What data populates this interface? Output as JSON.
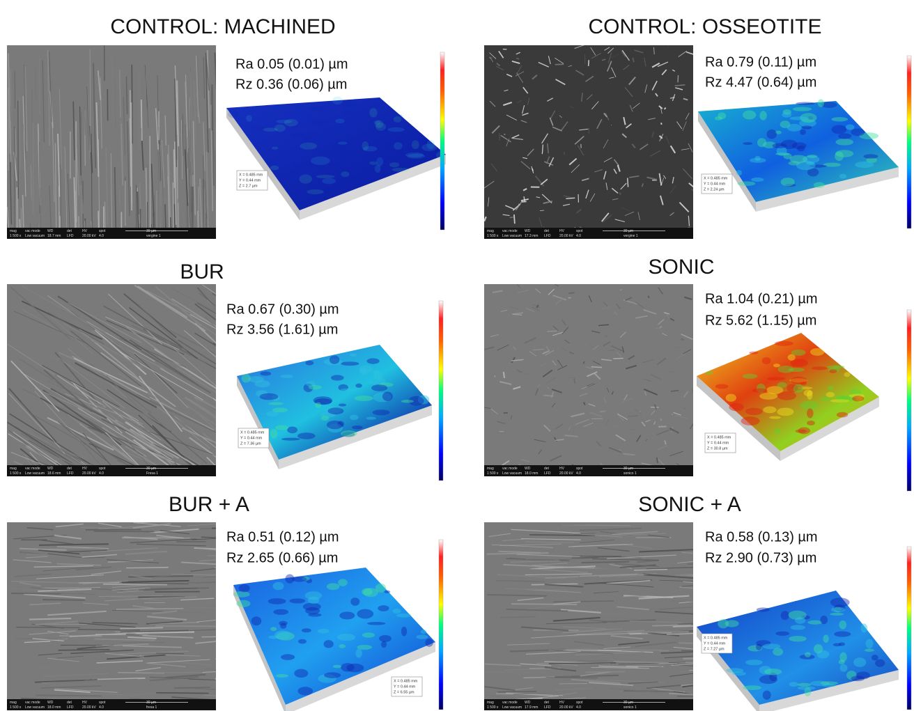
{
  "sem_bar_header": [
    "mag",
    "vac mode",
    "WD",
    "det",
    "HV",
    "spot",
    "30 µm"
  ],
  "panels": [
    {
      "title": "CONTROL: MACHINED",
      "ra": "Ra 0.05 (0.01) µm",
      "rz": "Rz 0.36 (0.06) µm",
      "inset": [
        "X = 0.485 mm",
        "Y = 0.44 mm",
        "Z = 2.7 µm"
      ],
      "sem_values": [
        "1 500 x",
        "Low vacuum",
        "18.7 mm",
        "LFD",
        "20.00 kV",
        "4.0",
        "vergine 1"
      ]
    },
    {
      "title": "CONTROL: OSSEOTITE",
      "ra": "Ra 0.79 (0.11) µm",
      "rz": "Rz 4.47 (0.64) µm",
      "inset": [
        "X = 0.485 mm",
        "Y = 0.44 mm",
        "Z = 2.24 µm"
      ],
      "sem_values": [
        "1 500 x",
        "Low vacuum",
        "17.3 mm",
        "LFD",
        "20.00 kV",
        "4.0",
        "vergine 1"
      ]
    },
    {
      "title": "BUR",
      "ra": "Ra 0.67 (0.30) µm",
      "rz": "Rz 3.56 (1.61) µm",
      "inset": [
        "X = 0.485 mm",
        "Y = 0.44 mm",
        "Z = 7.36 µm"
      ],
      "sem_values": [
        "1 500 x",
        "Low vacuum",
        "18.6 mm",
        "LFD",
        "20.00 kV",
        "4.0",
        "Fresa 1"
      ]
    },
    {
      "title": "SONIC",
      "ra": "Ra 1.04 (0.21) µm",
      "rz": "Rz 5.62 (1.15) µm",
      "inset": [
        "X = 0.485 mm",
        "Y = 0.44 mm",
        "Z = 30.8 µm"
      ],
      "sem_values": [
        "1 500 x",
        "Low vacuum",
        "18.0 mm",
        "LFD",
        "20.00 kV",
        "4.0",
        "sonico 1"
      ]
    },
    {
      "title": "BUR + A",
      "ra": "Ra 0.51 (0.12) µm",
      "rz": "Rz 2.65 (0.66) µm",
      "inset": [
        "X = 0.485 mm",
        "Y = 0.44 mm",
        "Z = 6.55 µm"
      ],
      "sem_values": [
        "1 500 x",
        "Low vacuum",
        "18.0 mm",
        "LFD",
        "20.00 kV",
        "4.0",
        "fresa 1"
      ]
    },
    {
      "title": "SONIC + A",
      "ra": "Ra 0.58 (0.13) µm",
      "rz": "Rz 2.90 (0.73) µm",
      "inset": [
        "X = 0.485 mm",
        "Y = 0.44 mm",
        "Z = 7.27 µm"
      ],
      "sem_values": [
        "1 500 x",
        "Low vacuum",
        "17.9 mm",
        "LFD",
        "20.00 kV",
        "4.0",
        "sonico 1"
      ]
    }
  ]
}
